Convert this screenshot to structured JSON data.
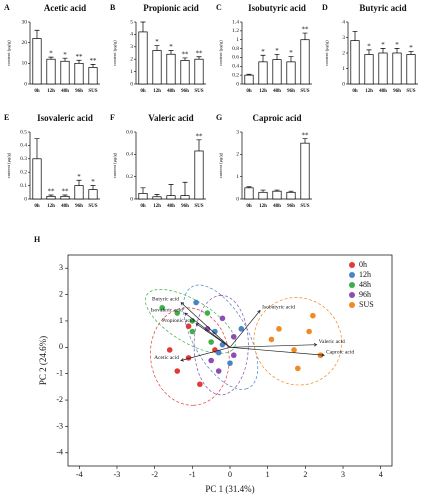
{
  "chart_data": [
    {
      "type": "bar",
      "panel": "A",
      "title": "Acetic acid",
      "ylabel": "content (μg/g)",
      "categories": [
        "0h",
        "12h",
        "48h",
        "96h",
        "SUS"
      ],
      "values": [
        22,
        12,
        11,
        10,
        8
      ],
      "errors": [
        4,
        1,
        1.5,
        1.5,
        1.5
      ],
      "annotations": [
        null,
        "*",
        "*",
        "**",
        "**"
      ],
      "ylim": [
        0,
        30
      ],
      "yticks": [
        0,
        10,
        20,
        30
      ],
      "color": "#ffffff"
    },
    {
      "type": "bar",
      "panel": "B",
      "title": "Propionic acid",
      "ylabel": "content (μg/g)",
      "categories": [
        "0h",
        "12h",
        "48h",
        "96h",
        "SUS"
      ],
      "values": [
        4.2,
        2.7,
        2.4,
        1.9,
        2.0
      ],
      "errors": [
        0.8,
        0.4,
        0.3,
        0.2,
        0.2
      ],
      "annotations": [
        null,
        "*",
        "*",
        "**",
        "**"
      ],
      "ylim": [
        0,
        5
      ],
      "yticks": [
        0,
        1,
        2,
        3,
        4,
        5
      ],
      "color": "#ffffff"
    },
    {
      "type": "bar",
      "panel": "C",
      "title": "Isobutyric acid",
      "ylabel": "content (μg/g)",
      "categories": [
        "0h",
        "12h",
        "48h",
        "96h",
        "SUS"
      ],
      "values": [
        0.2,
        0.5,
        0.55,
        0.5,
        1.0
      ],
      "errors": [
        0.02,
        0.15,
        0.12,
        0.12,
        0.15
      ],
      "annotations": [
        null,
        "*",
        "*",
        "*",
        "**"
      ],
      "ylim": [
        0,
        1.4
      ],
      "yticks": [
        0,
        0.2,
        0.4,
        0.6,
        0.8,
        1,
        1.2,
        1.4
      ],
      "color": "#ffffff"
    },
    {
      "type": "bar",
      "panel": "D",
      "title": "Butyric acid",
      "ylabel": "content (μg/g)",
      "categories": [
        "0h",
        "12h",
        "48h",
        "96h",
        "SUS"
      ],
      "values": [
        2.8,
        1.9,
        2.0,
        2.0,
        1.9
      ],
      "errors": [
        0.6,
        0.3,
        0.3,
        0.3,
        0.2
      ],
      "annotations": [
        null,
        "*",
        "*",
        "*",
        "*"
      ],
      "ylim": [
        0,
        4
      ],
      "yticks": [
        0,
        1,
        2,
        3,
        4
      ],
      "color": "#ffffff"
    },
    {
      "type": "bar",
      "panel": "E",
      "title": "Isovaleric acid",
      "ylabel": "content (μg/g)",
      "categories": [
        "0h",
        "12h",
        "48h",
        "96h",
        "SUS"
      ],
      "values": [
        0.3,
        0.02,
        0.02,
        0.1,
        0.07
      ],
      "errors": [
        0.15,
        0.01,
        0.01,
        0.04,
        0.03
      ],
      "annotations": [
        null,
        "**",
        "**",
        "*",
        "*"
      ],
      "ylim": [
        0,
        0.5
      ],
      "yticks": [
        0,
        0.1,
        0.2,
        0.3,
        0.4,
        0.5
      ],
      "color": "#ffffff"
    },
    {
      "type": "bar",
      "panel": "F",
      "title": "Valeric acid",
      "ylabel": "content (μg/g)",
      "categories": [
        "0h",
        "12h",
        "48h",
        "96h",
        "SUS"
      ],
      "values": [
        0.05,
        0.02,
        0.03,
        0.03,
        0.43
      ],
      "errors": [
        0.05,
        0.02,
        0.1,
        0.12,
        0.1
      ],
      "annotations": [
        null,
        null,
        null,
        null,
        "**"
      ],
      "ylim": [
        0,
        0.6
      ],
      "yticks": [
        0,
        0.2,
        0.4,
        0.6
      ],
      "color": "#ffffff"
    },
    {
      "type": "bar",
      "panel": "G",
      "title": "Caproic acid",
      "ylabel": "content (μg/g)",
      "categories": [
        "0h",
        "12h",
        "48h",
        "96h",
        "SUS"
      ],
      "values": [
        0.5,
        0.3,
        0.35,
        0.3,
        2.5
      ],
      "errors": [
        0.05,
        0.1,
        0.05,
        0.05,
        0.2
      ],
      "annotations": [
        null,
        null,
        null,
        null,
        "**"
      ],
      "ylim": [
        0,
        3
      ],
      "yticks": [
        0,
        1,
        2,
        3
      ],
      "color": "#ffffff"
    },
    {
      "type": "scatter",
      "panel": "H",
      "xlabel": "PC 1 (31.4%)",
      "ylabel": "PC 2 (24.6%)",
      "xlim": [
        -4.3,
        4.3
      ],
      "ylim": [
        -4.5,
        3.5
      ],
      "xticks": [
        -4,
        -3,
        -2,
        -1,
        0,
        1,
        2,
        3,
        4
      ],
      "yticks": [
        -4,
        -3,
        -2,
        -1,
        0,
        1,
        2,
        3
      ],
      "ellipses": true,
      "series": [
        {
          "name": "0h",
          "color": "#e03a3a",
          "x": [
            -1.1,
            -1.6,
            -1.1,
            -1.4,
            -0.8,
            -0.4
          ],
          "y": [
            0.8,
            -0.1,
            -0.4,
            -0.9,
            -1.4,
            -0.1
          ]
        },
        {
          "name": "12h",
          "color": "#4a84c4",
          "x": [
            -0.9,
            -0.4,
            -0.2,
            0,
            0.3,
            -0.3
          ],
          "y": [
            1.7,
            0.6,
            0.1,
            -0.6,
            0.7,
            -0.2
          ]
        },
        {
          "name": "48h",
          "color": "#3cb04a",
          "x": [
            -1.8,
            -1.4,
            -1,
            -0.5,
            -1,
            -0.6
          ],
          "y": [
            1.5,
            1.3,
            0.6,
            0.2,
            1.0,
            1.3
          ]
        },
        {
          "name": "96h",
          "color": "#8a4fb0",
          "x": [
            -0.5,
            -0.3,
            0.1,
            -0.2,
            0.1,
            -0.6
          ],
          "y": [
            -0.5,
            -0.9,
            0.4,
            1.1,
            -0.3,
            0.7
          ]
        },
        {
          "name": "SUS",
          "color": "#f08a24",
          "x": [
            1.3,
            1.1,
            1.7,
            2.1,
            2.4,
            1.8,
            2.2
          ],
          "y": [
            0.7,
            0.3,
            -0.1,
            0.6,
            -0.3,
            -0.8,
            1.2
          ]
        }
      ],
      "loadings": {
        "names": [
          "Butyric acid",
          "Isovaleric acid",
          "Propionic acid",
          "Acetic acid",
          "Isobutyric acid",
          "Valeric acid",
          "Caproic acid"
        ],
        "x": [
          -1.3,
          -1.2,
          -0.9,
          -1.3,
          0.8,
          2.3,
          2.5
        ],
        "y": [
          1.7,
          1.3,
          0.9,
          -0.5,
          1.4,
          0.1,
          -0.3
        ]
      }
    }
  ]
}
